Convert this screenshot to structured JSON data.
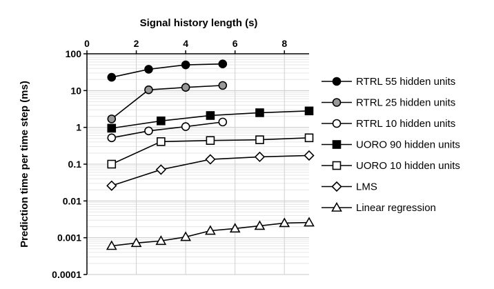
{
  "chart_data": {
    "type": "line",
    "title": "",
    "xlabel": "Signal history length (s)",
    "ylabel": "Prediction time per time step (ms)",
    "x_axis_position": "top",
    "xlim": [
      0,
      9
    ],
    "x_ticks": [
      0,
      2,
      4,
      6,
      8
    ],
    "x_tick_labels": [
      "0",
      "2",
      "4",
      "6",
      "8"
    ],
    "y_scale": "log",
    "ylim": [
      0.0001,
      100
    ],
    "y_ticks": [
      0.0001,
      0.001,
      0.01,
      0.1,
      1,
      10,
      100
    ],
    "y_tick_labels": [
      "0.0001",
      "0.001",
      "0.01",
      "0.1",
      "1",
      "10",
      "100"
    ],
    "grid": true,
    "legend_position": "right",
    "series": [
      {
        "name": "RTRL 55 hidden units",
        "marker": "circle",
        "fill": "#000000",
        "x": [
          1,
          2.5,
          4,
          5.5
        ],
        "values": [
          23,
          38,
          50,
          53
        ]
      },
      {
        "name": "RTRL 25 hidden units",
        "marker": "circle",
        "fill": "#999999",
        "x": [
          1,
          2.5,
          4,
          5.5
        ],
        "values": [
          1.7,
          10.5,
          12.2,
          13.8
        ]
      },
      {
        "name": "RTRL 10 hidden units",
        "marker": "circle",
        "fill": "#ffffff",
        "x": [
          1,
          2.5,
          4,
          5.5
        ],
        "values": [
          0.52,
          0.8,
          1.05,
          1.4
        ]
      },
      {
        "name": "UORO 90 hidden units",
        "marker": "square",
        "fill": "#000000",
        "x": [
          1,
          3,
          5,
          7,
          9
        ],
        "values": [
          0.95,
          1.5,
          2.1,
          2.5,
          2.8
        ]
      },
      {
        "name": "UORO 10 hidden units",
        "marker": "square",
        "fill": "#ffffff",
        "x": [
          1,
          3,
          5,
          7,
          9
        ],
        "values": [
          0.1,
          0.41,
          0.44,
          0.46,
          0.52
        ]
      },
      {
        "name": "LMS",
        "marker": "diamond",
        "fill": "#ffffff",
        "x": [
          1,
          3,
          5,
          7,
          9
        ],
        "values": [
          0.026,
          0.071,
          0.135,
          0.158,
          0.172
        ]
      },
      {
        "name": "Linear regression",
        "marker": "triangle",
        "fill": "#ffffff",
        "x": [
          1,
          2,
          3,
          4,
          5,
          6,
          7,
          8,
          9
        ],
        "values": [
          0.0006,
          0.00072,
          0.00082,
          0.00105,
          0.00155,
          0.00178,
          0.0021,
          0.0025,
          0.0026
        ]
      }
    ]
  }
}
